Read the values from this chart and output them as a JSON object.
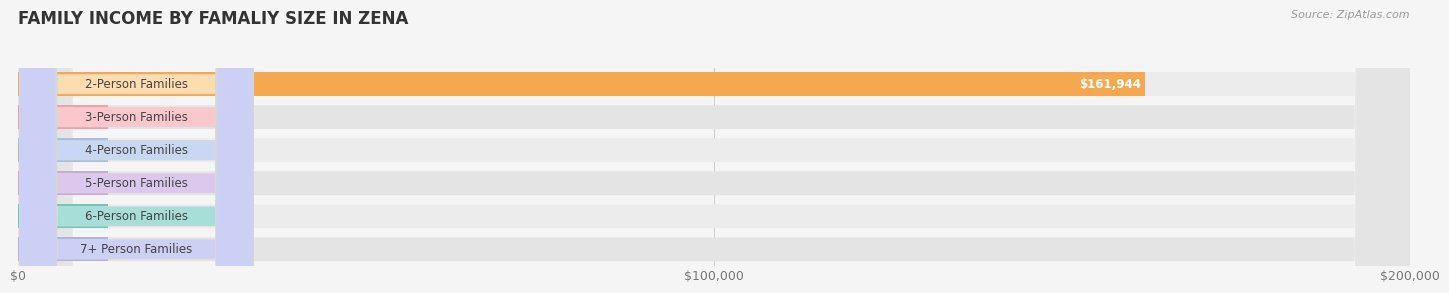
{
  "title": "FAMILY INCOME BY FAMALIY SIZE IN ZENA",
  "source": "Source: ZipAtlas.com",
  "categories": [
    "2-Person Families",
    "3-Person Families",
    "4-Person Families",
    "5-Person Families",
    "6-Person Families",
    "7+ Person Families"
  ],
  "values": [
    161944,
    0,
    0,
    0,
    0,
    0
  ],
  "bar_colors": [
    "#F5A850",
    "#EFA0A8",
    "#A8BEE0",
    "#C8A8D4",
    "#6EC8BC",
    "#B0B4E4"
  ],
  "label_bg_colors": [
    "#FDDDB0",
    "#FAC8CC",
    "#C8D8F2",
    "#DCC8EC",
    "#A8DED8",
    "#CCD0F4"
  ],
  "row_bg_color": "#e8e8e8",
  "row_bg_alt": "#f0f0f0",
  "xlim": [
    0,
    200000
  ],
  "xticks": [
    0,
    100000,
    200000
  ],
  "xtick_labels": [
    "$0",
    "$100,000",
    "$200,000"
  ],
  "bar_height": 0.72,
  "background_color": "#f5f5f5",
  "title_fontsize": 12,
  "label_fontsize": 8.5,
  "value_fontsize": 8.5,
  "source_fontsize": 8
}
